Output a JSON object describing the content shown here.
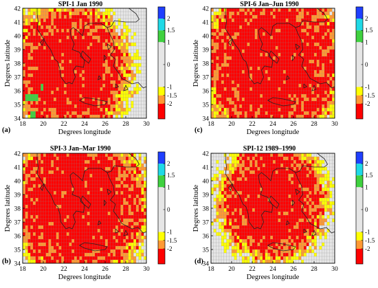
{
  "panels": [
    {
      "tag": "(a)",
      "title": "SPI-1 Jan 1990",
      "dry_center": [
        22.5,
        37.5
      ],
      "dry_radius": 5.2,
      "wet_patches": [
        [
          18.3,
          35.3,
          1.2,
          0.4
        ],
        [
          19.7,
          36.0,
          0.4,
          0.4
        ],
        [
          18.8,
          34.1,
          0.5,
          0.4
        ]
      ]
    },
    {
      "tag": "(c)",
      "title": "SPI-6 Jan–Jun 1990",
      "dry_center": [
        24.0,
        38.0
      ],
      "dry_radius": 6.2,
      "wet_patches": []
    },
    {
      "tag": "(b)",
      "title": "SPI-3 Jan–Mar 1990",
      "dry_center": [
        23.5,
        38.2
      ],
      "dry_radius": 6.0,
      "wet_patches": []
    },
    {
      "tag": "(d)",
      "title": "SPI-12 1989–1990",
      "dry_center": [
        24.0,
        38.5
      ],
      "dry_radius": 4.6,
      "wet_patches": []
    }
  ],
  "axes": {
    "xlabel": "Degrees longitude",
    "ylabel": "Degrees latitude",
    "xticks": [
      18,
      20,
      22,
      24,
      26,
      28,
      30
    ],
    "yticks": [
      34,
      35,
      36,
      37,
      38,
      39,
      40,
      41,
      42
    ],
    "xlim": [
      18,
      30
    ],
    "ylim": [
      34,
      42
    ]
  },
  "colorbar": {
    "labels": [
      "2",
      "1.5",
      "1",
      "0",
      "-1",
      "-1.5",
      "-2"
    ],
    "classes": [
      {
        "range": "> 2",
        "color": "#1f3fff"
      },
      {
        "range": "1.5 to 2",
        "color": "#1fd9e6"
      },
      {
        "range": "1 to 1.5",
        "color": "#3fd13f"
      },
      {
        "range": "-1 to 1",
        "color": "#e6e6e6"
      },
      {
        "range": "-1.5 to -1",
        "color": "#ffff00"
      },
      {
        "range": "-2 to -1.5",
        "color": "#ff9933"
      },
      {
        "range": "< -2",
        "color": "#ff0000"
      }
    ]
  }
}
